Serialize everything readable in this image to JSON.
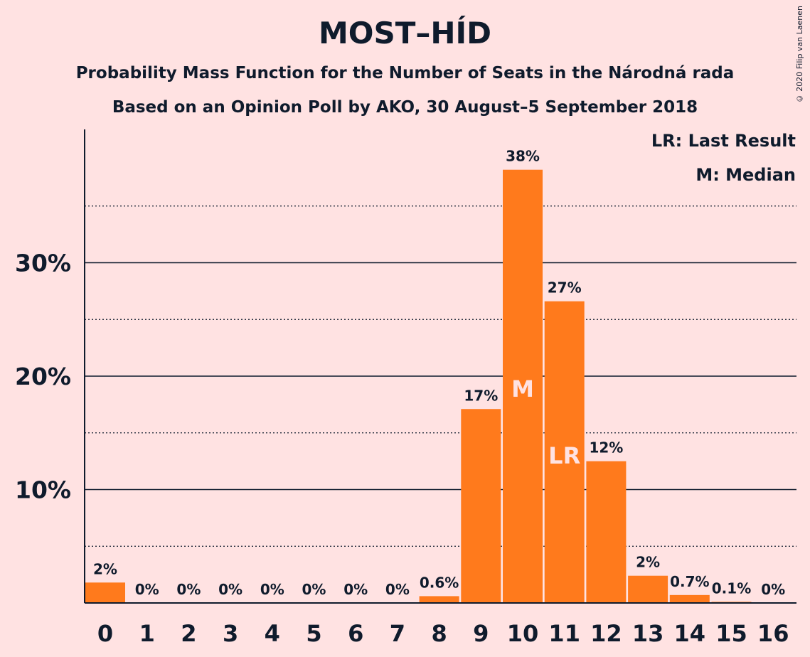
{
  "chart_data": {
    "type": "bar",
    "title": "MOST–HÍD",
    "subtitle_lines": [
      "Probability Mass Function for the Number of Seats in the Národná rada",
      "Based on an Opinion Poll by AKO, 30 August–5 September 2018"
    ],
    "copyright": "© 2020 Filip van Laenen",
    "legend": {
      "placement": "top-right",
      "entries": [
        "LR: Last Result",
        "M: Median"
      ]
    },
    "categories": [
      "0",
      "1",
      "2",
      "3",
      "4",
      "5",
      "6",
      "7",
      "8",
      "9",
      "10",
      "11",
      "12",
      "13",
      "14",
      "15",
      "16"
    ],
    "values": [
      1.8,
      0,
      0,
      0,
      0,
      0,
      0,
      0,
      0.6,
      17.1,
      38.2,
      26.6,
      12.5,
      2.4,
      0.7,
      0.1,
      0
    ],
    "data_labels": [
      "2%",
      "0%",
      "0%",
      "0%",
      "0%",
      "0%",
      "0%",
      "0%",
      "0.6%",
      "17%",
      "38%",
      "27%",
      "12%",
      "2%",
      "0.7%",
      "0.1%",
      "0%"
    ],
    "bar_markers": {
      "10": "M",
      "11": "LR"
    },
    "y_ticks": [
      10,
      20,
      30
    ],
    "y_tick_labels": [
      "10%",
      "20%",
      "30%"
    ],
    "y_minor_ticks": [
      5,
      15,
      25,
      35
    ],
    "ylim": [
      0,
      41.5
    ],
    "grid": true,
    "colors": {
      "bar": "#FF7A1C",
      "background": "#FFE2E2",
      "text": "#0F1B2C",
      "marker_text": "#FFE2E2"
    }
  }
}
